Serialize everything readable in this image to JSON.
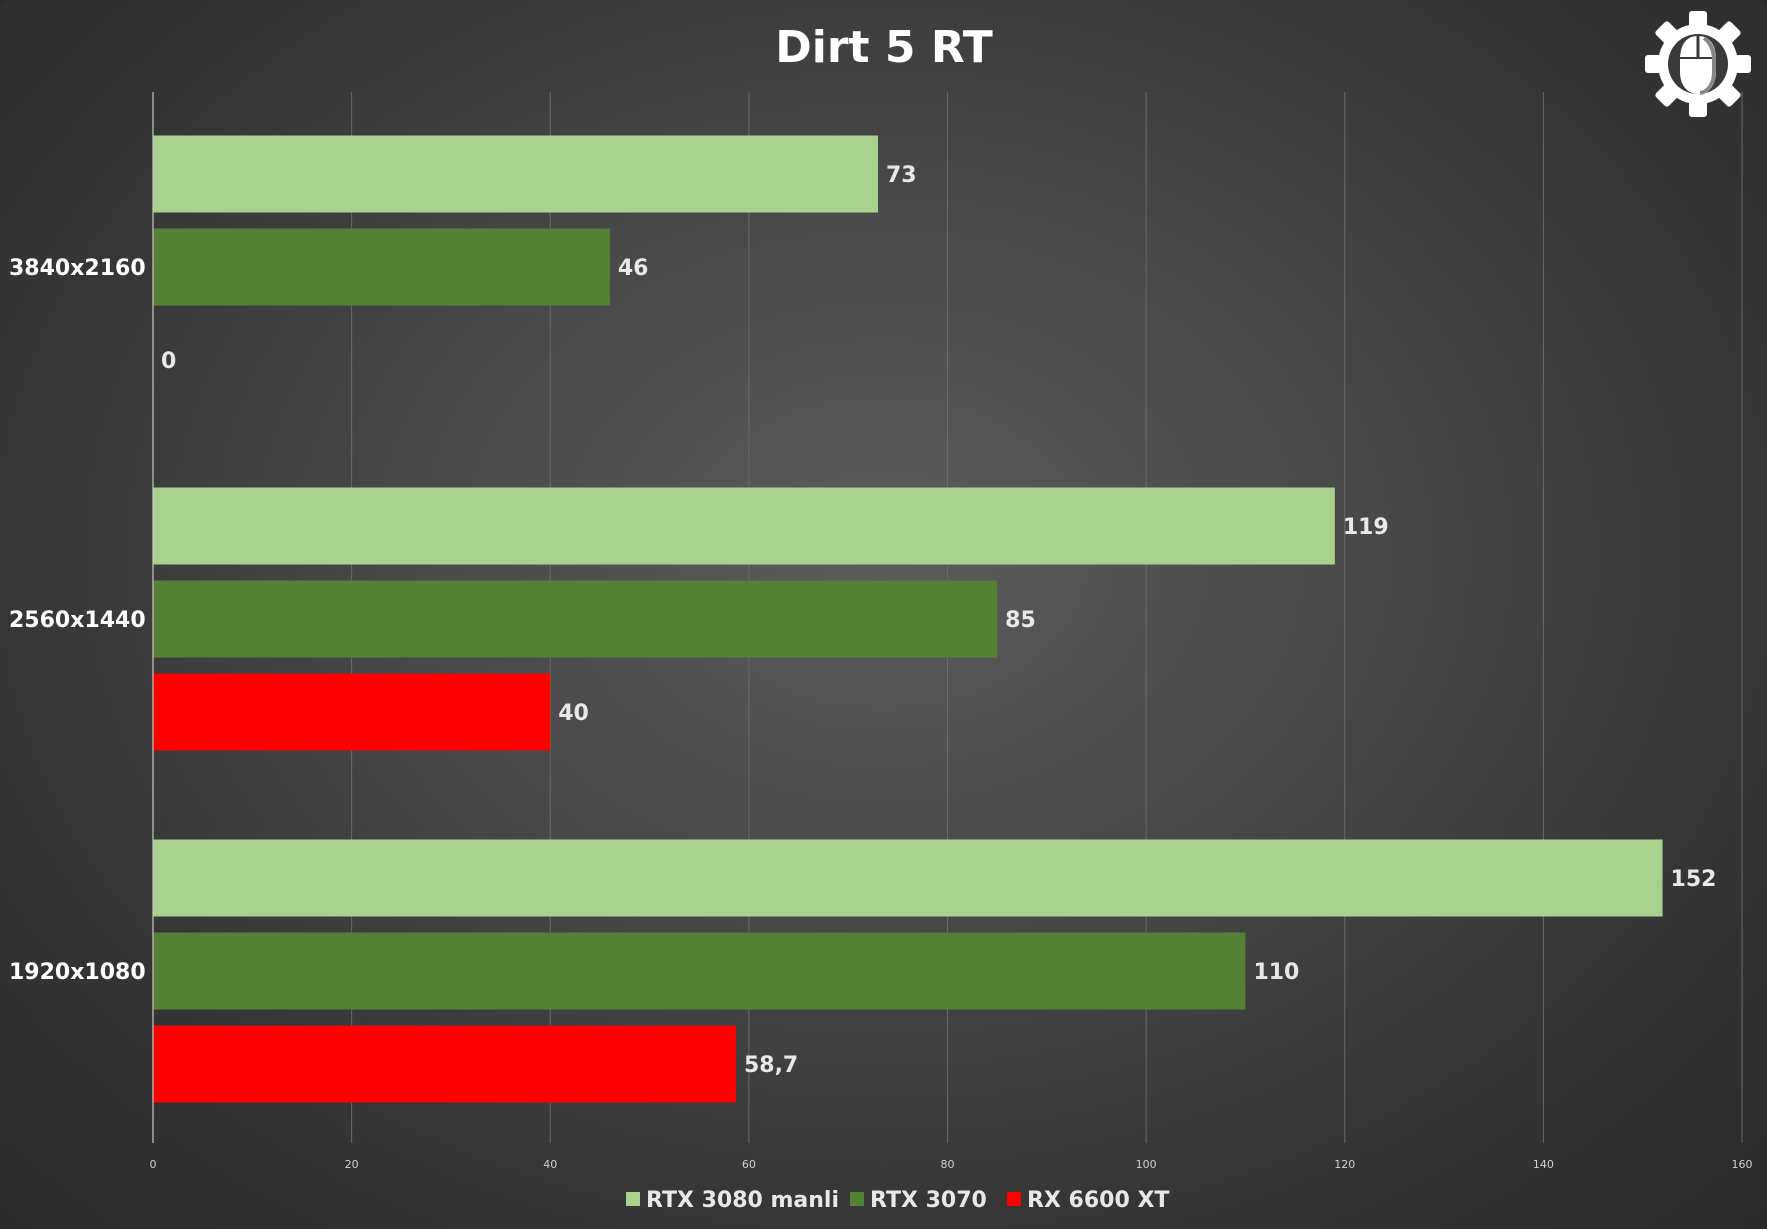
{
  "chart_data": {
    "type": "bar",
    "orientation": "horizontal",
    "title": "Dirt 5 RT",
    "categories": [
      "3840x2160",
      "2560x1440",
      "1920x1080"
    ],
    "series": [
      {
        "name": "RTX 3080 manli",
        "color": "#a9d18e",
        "values": [
          73,
          119,
          152
        ]
      },
      {
        "name": "RTX 3070",
        "color": "#548235",
        "values": [
          46,
          85,
          110
        ]
      },
      {
        "name": "RX 6600 XT",
        "color": "#ff0000",
        "values": [
          0,
          40,
          58.7
        ]
      }
    ],
    "data_labels": [
      [
        "73",
        "119",
        "152"
      ],
      [
        "46",
        "85",
        "110"
      ],
      [
        "0",
        "40",
        "58,7"
      ]
    ],
    "xlim": [
      0,
      160
    ],
    "x_ticks": [
      0,
      20,
      40,
      60,
      80,
      100,
      120,
      140,
      160
    ],
    "grid": true,
    "legend_position": "bottom",
    "logo_icon": "gear-mouse-icon"
  }
}
